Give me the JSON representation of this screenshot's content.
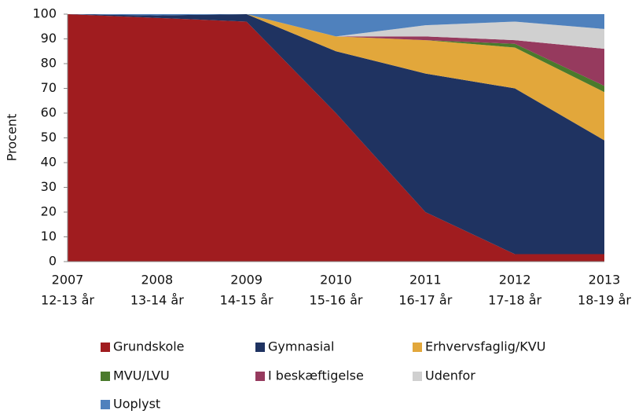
{
  "chart_data": {
    "type": "stacked_area",
    "ylabel": "Procent",
    "categories": [
      [
        "2007",
        "12-13 år"
      ],
      [
        "2008",
        "13-14 år"
      ],
      [
        "2009",
        "14-15 år"
      ],
      [
        "2010",
        "15-16 år"
      ],
      [
        "2011",
        "16-17 år"
      ],
      [
        "2012",
        "17-18 år"
      ],
      [
        "2013",
        "18-19 år"
      ]
    ],
    "series": [
      {
        "name": "Grundskole",
        "color": "#a01c1f",
        "values": [
          100,
          98.5,
          97,
          60,
          20,
          3,
          3
        ]
      },
      {
        "name": "Gymnasial",
        "color": "#1f3361",
        "values": [
          0,
          1,
          3,
          25,
          56,
          67,
          46
        ]
      },
      {
        "name": "Erhvervsfaglig/KVU",
        "color": "#e2a73b",
        "values": [
          0,
          0,
          0,
          6,
          13.5,
          16.5,
          19.5
        ]
      },
      {
        "name": "MVU/LVU",
        "color": "#4a7a2c",
        "values": [
          0,
          0,
          0,
          0,
          0,
          1.5,
          2.5
        ]
      },
      {
        "name": "I beskæftigelse",
        "color": "#963a5e",
        "values": [
          0,
          0,
          0,
          0,
          1.5,
          1.5,
          15
        ]
      },
      {
        "name": "Udenfor",
        "color": "#d0d0d0",
        "values": [
          0,
          0,
          0,
          0,
          4.5,
          7.5,
          8
        ]
      },
      {
        "name": "Uoplyst",
        "color": "#4f81bd",
        "values": [
          0,
          0.5,
          0,
          9,
          4.5,
          3,
          6
        ]
      }
    ],
    "ylim": [
      0,
      100
    ],
    "yticks": [
      0,
      10,
      20,
      30,
      40,
      50,
      60,
      70,
      80,
      90,
      100
    ],
    "grid": false,
    "legend": "bottom"
  }
}
